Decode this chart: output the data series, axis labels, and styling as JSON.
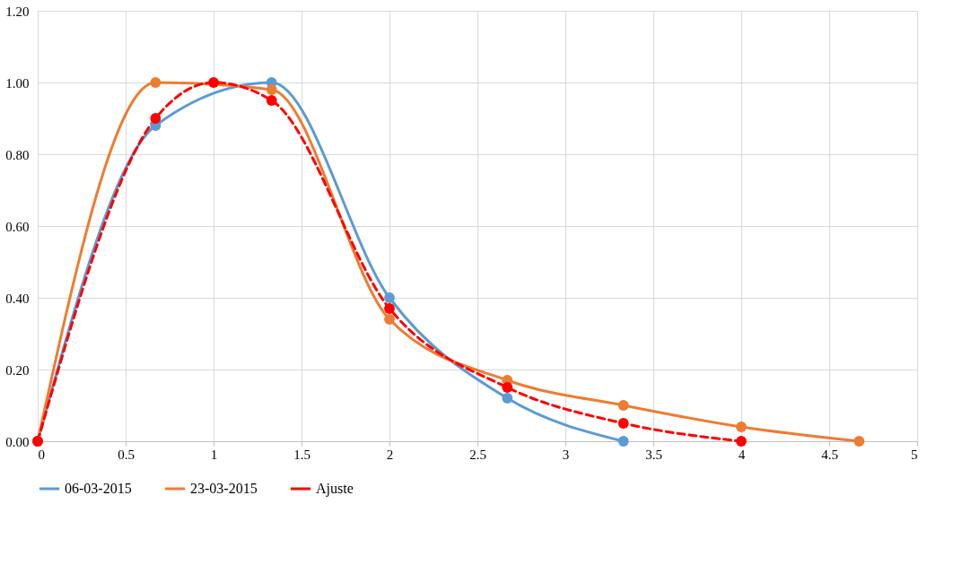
{
  "chart_data": {
    "type": "line",
    "xlim": [
      0,
      5
    ],
    "xticks": [
      0,
      0.5,
      1,
      1.5,
      2,
      2.5,
      3,
      3.5,
      4,
      4.5,
      5
    ],
    "ylim": [
      0,
      1.2
    ],
    "yticks": [
      {
        "value": 0,
        "label": "0.00"
      },
      {
        "value": 0.2,
        "label": "0.20"
      },
      {
        "value": 0.4,
        "label": "0.40"
      },
      {
        "value": 0.6,
        "label": "0.60"
      },
      {
        "value": 0.8,
        "label": "0.80"
      },
      {
        "value": 1.0,
        "label": "1.00"
      },
      {
        "value": 1.2,
        "label": "1.20"
      }
    ],
    "grid": true,
    "legend": "bottom",
    "marker": "circle",
    "series": [
      {
        "name": "06-03-2015",
        "color": "#5b9bd5",
        "line_style": "solid",
        "x": [
          0,
          0.67,
          1.33,
          2,
          2.67,
          3.33
        ],
        "values": [
          0,
          0.88,
          1.0,
          0.4,
          0.12,
          0
        ]
      },
      {
        "name": "23-03-2015",
        "color": "#ed7d31",
        "line_style": "solid",
        "x": [
          0,
          0.67,
          1.33,
          2,
          2.67,
          3.33,
          4,
          4.67
        ],
        "values": [
          0,
          1.0,
          0.98,
          0.34,
          0.17,
          0.1,
          0.04,
          0
        ]
      },
      {
        "name": "Ajuste",
        "color": "#ff0000",
        "line_style": "dashed",
        "x": [
          0,
          0.67,
          1,
          1.33,
          2,
          2.67,
          3.33,
          4
        ],
        "values": [
          0,
          0.9,
          1.0,
          0.95,
          0.37,
          0.15,
          0.05,
          0
        ]
      }
    ]
  }
}
